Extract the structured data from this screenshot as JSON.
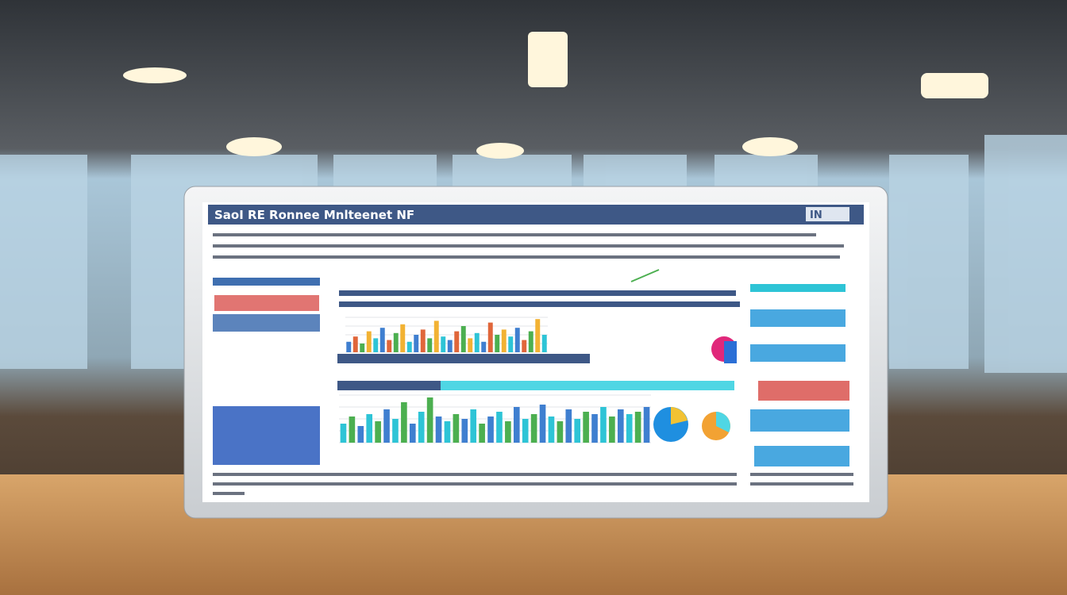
{
  "screen": {
    "title": "SaoI RE Ronnee Mnlteenet NF",
    "badge": "IN"
  },
  "top_chart": {
    "type": "bar",
    "colors": [
      "#3f7fd0",
      "#e0663a",
      "#4caf50",
      "#f2b233",
      "#2ec4d6"
    ],
    "values": [
      30,
      45,
      25,
      60,
      40,
      70,
      35,
      55,
      80,
      30,
      50,
      65,
      40,
      90,
      45,
      35,
      60,
      75,
      40,
      55,
      30,
      85,
      50,
      65,
      45,
      70,
      35,
      60,
      95,
      50
    ]
  },
  "bottom_chart": {
    "type": "bar",
    "colors": [
      "#2ec4d6",
      "#4caf50",
      "#3f7fd0"
    ],
    "values": [
      40,
      55,
      35,
      60,
      45,
      70,
      50,
      85,
      40,
      65,
      95,
      55,
      45,
      60,
      50,
      70,
      40,
      55,
      65,
      45,
      75,
      50,
      60,
      80,
      55,
      45,
      70,
      50,
      65,
      60,
      75,
      55,
      70,
      60,
      65,
      75
    ]
  }
}
